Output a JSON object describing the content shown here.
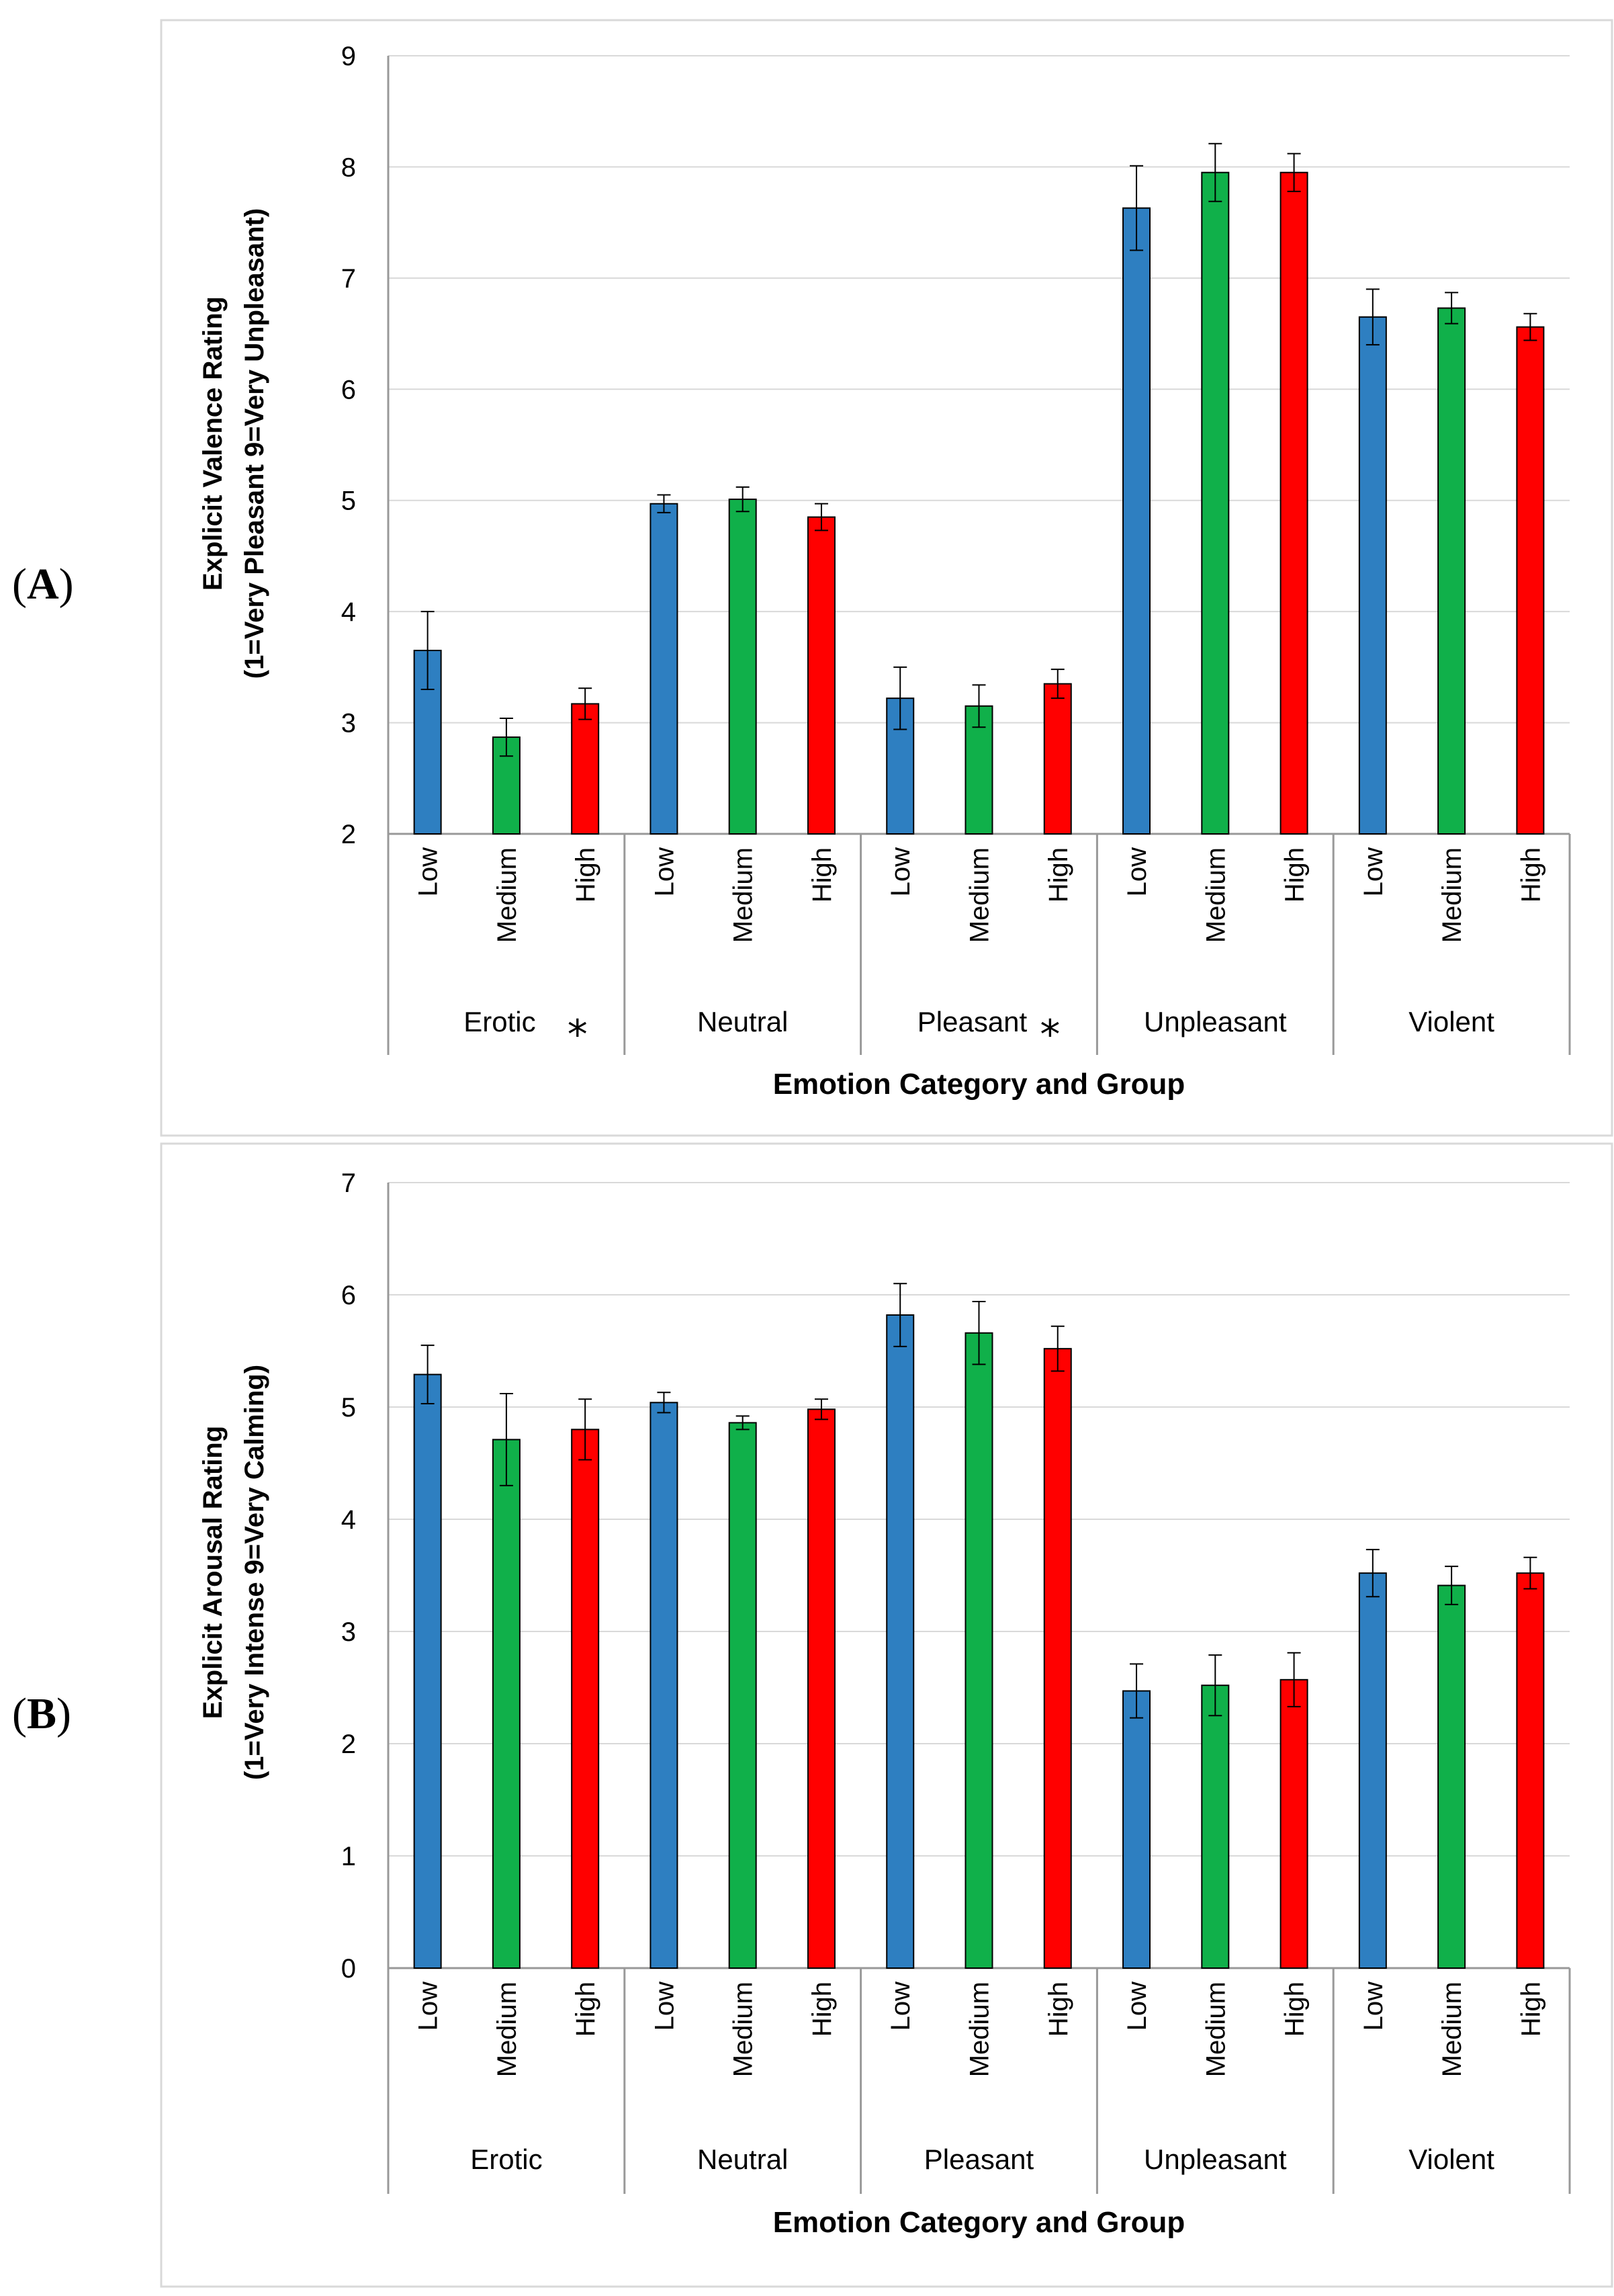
{
  "panels": [
    {
      "label_open": "(",
      "label_letter": "A",
      "label_close": ")"
    },
    {
      "label_open": "(",
      "label_letter": "B",
      "label_close": ")"
    }
  ],
  "colors": {
    "Low": "#2E7FC1",
    "Medium": "#10B04A",
    "High": "#FF0000"
  },
  "chart_data": [
    {
      "type": "bar",
      "title": "",
      "xlabel": "Emotion Category and Group",
      "ylabel_line1": "Explicit Valence Rating",
      "ylabel_line2": "(1=Very Pleasant 9=Very Unpleasant)",
      "ylim": [
        2,
        9
      ],
      "yticks": [
        2,
        3,
        4,
        5,
        6,
        7,
        8,
        9
      ],
      "groups": [
        "Low",
        "Medium",
        "High"
      ],
      "categories": [
        "Erotic",
        "Neutral",
        "Pleasant",
        "Unpleasant",
        "Violent"
      ],
      "significance_marks": [
        "*",
        "",
        "*",
        "",
        ""
      ],
      "series": [
        {
          "name": "Low",
          "values": [
            3.65,
            4.97,
            3.22,
            7.63,
            6.65
          ],
          "errors": [
            0.35,
            0.08,
            0.28,
            0.38,
            0.25
          ]
        },
        {
          "name": "Medium",
          "values": [
            2.87,
            5.01,
            3.15,
            7.95,
            6.73
          ],
          "errors": [
            0.17,
            0.11,
            0.19,
            0.26,
            0.14
          ]
        },
        {
          "name": "High",
          "values": [
            3.17,
            4.85,
            3.35,
            7.95,
            6.56
          ],
          "errors": [
            0.14,
            0.12,
            0.13,
            0.17,
            0.12
          ]
        }
      ]
    },
    {
      "type": "bar",
      "title": "",
      "xlabel": "Emotion Category and Group",
      "ylabel_line1": "Explicit Arousal Rating",
      "ylabel_line2": "(1=Very Intense 9=Very Calming)",
      "ylim": [
        0,
        7
      ],
      "yticks": [
        0,
        1,
        2,
        3,
        4,
        5,
        6,
        7
      ],
      "groups": [
        "Low",
        "Medium",
        "High"
      ],
      "categories": [
        "Erotic",
        "Neutral",
        "Pleasant",
        "Unpleasant",
        "Violent"
      ],
      "significance_marks": [
        "",
        "",
        "",
        "",
        ""
      ],
      "series": [
        {
          "name": "Low",
          "values": [
            5.29,
            5.04,
            5.82,
            2.47,
            3.52
          ],
          "errors": [
            0.26,
            0.09,
            0.28,
            0.24,
            0.21
          ]
        },
        {
          "name": "Medium",
          "values": [
            4.71,
            4.86,
            5.66,
            2.52,
            3.41
          ],
          "errors": [
            0.41,
            0.06,
            0.28,
            0.27,
            0.17
          ]
        },
        {
          "name": "High",
          "values": [
            4.8,
            4.98,
            5.52,
            2.57,
            3.52
          ],
          "errors": [
            0.27,
            0.09,
            0.2,
            0.24,
            0.14
          ]
        }
      ]
    }
  ]
}
